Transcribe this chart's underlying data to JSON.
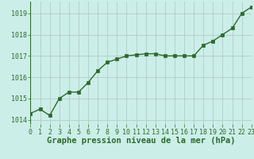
{
  "x": [
    0,
    1,
    2,
    3,
    4,
    5,
    6,
    7,
    8,
    9,
    10,
    11,
    12,
    13,
    14,
    15,
    16,
    17,
    18,
    19,
    20,
    21,
    22,
    23
  ],
  "y": [
    1014.3,
    1014.5,
    1014.2,
    1015.0,
    1015.3,
    1015.3,
    1015.75,
    1016.3,
    1016.7,
    1016.85,
    1017.0,
    1017.05,
    1017.1,
    1017.1,
    1017.0,
    1017.0,
    1017.0,
    1017.0,
    1017.5,
    1017.7,
    1018.0,
    1018.3,
    1019.0,
    1019.3
  ],
  "xlim": [
    0,
    23
  ],
  "ylim": [
    1013.8,
    1019.55
  ],
  "yticks": [
    1014,
    1015,
    1016,
    1017,
    1018,
    1019
  ],
  "xticks": [
    0,
    1,
    2,
    3,
    4,
    5,
    6,
    7,
    8,
    9,
    10,
    11,
    12,
    13,
    14,
    15,
    16,
    17,
    18,
    19,
    20,
    21,
    22,
    23
  ],
  "line_color": "#2d6a2d",
  "marker": "s",
  "marker_size": 2.2,
  "bg_color": "#cceee8",
  "grid_color": "#b0ccc8",
  "xlabel": "Graphe pression niveau de la mer (hPa)",
  "xlabel_fontsize": 7.5,
  "tick_fontsize": 6.0,
  "line_width": 1.0
}
